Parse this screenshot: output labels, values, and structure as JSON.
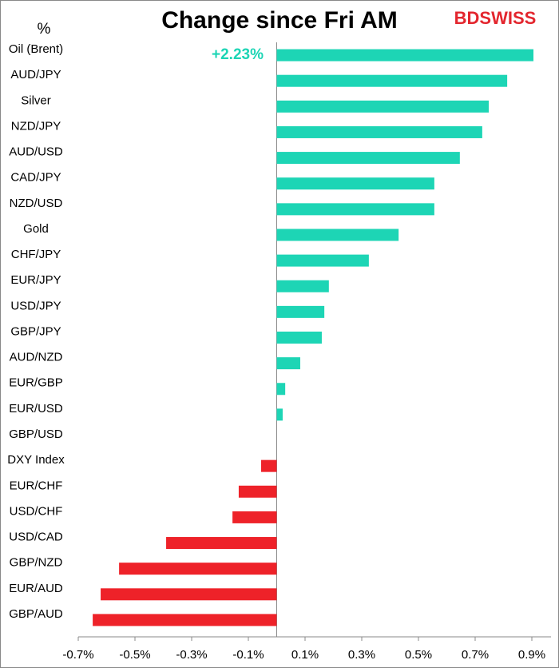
{
  "chart_data": {
    "type": "hbar",
    "title": "Change since Fri AM",
    "unit_label": "%",
    "brand": "BDSWISS",
    "categories": [
      "Oil (Brent)",
      "AUD/JPY",
      "Silver",
      "NZD/JPY",
      "AUD/USD",
      "CAD/JPY",
      "NZD/USD",
      "Gold",
      "CHF/JPY",
      "EUR/JPY",
      "USD/JPY",
      "GBP/JPY",
      "AUD/NZD",
      "EUR/GBP",
      "EUR/USD",
      "GBP/USD",
      "DXY Index",
      "EUR/CHF",
      "USD/CHF",
      "USD/CAD",
      "GBP/NZD",
      "EUR/AUD",
      "GBP/AUD"
    ],
    "values": [
      2.23,
      0.813,
      0.748,
      0.725,
      0.646,
      0.556,
      0.556,
      0.43,
      0.325,
      0.184,
      0.168,
      0.159,
      0.083,
      0.03,
      0.021,
      0,
      -0.055,
      -0.134,
      -0.156,
      -0.39,
      -0.556,
      -0.621,
      -0.649
    ],
    "value_labels": [
      "+2.23%",
      null,
      null,
      null,
      null,
      null,
      null,
      null,
      null,
      null,
      null,
      null,
      null,
      null,
      null,
      null,
      null,
      null,
      null,
      null,
      null,
      null,
      null
    ],
    "color_positive": "#1dd5b5",
    "color_negative": "#ee2229",
    "xlim": [
      -0.7,
      0.9
    ],
    "xticks": [
      {
        "value": -0.7,
        "label": "-0.7%"
      },
      {
        "value": -0.5,
        "label": "-0.5%"
      },
      {
        "value": -0.3,
        "label": "-0.3%"
      },
      {
        "value": -0.1,
        "label": "-0.1%"
      },
      {
        "value": 0.1,
        "label": "0.1%"
      },
      {
        "value": 0.3,
        "label": "0.3%"
      },
      {
        "value": 0.5,
        "label": "0.5%"
      },
      {
        "value": 0.7,
        "label": "0.7%"
      },
      {
        "value": 0.9,
        "label": "0.9%"
      }
    ]
  }
}
